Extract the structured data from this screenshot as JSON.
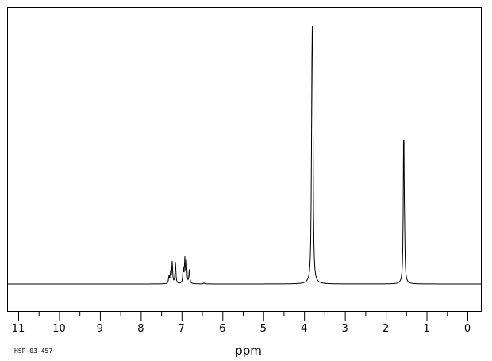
{
  "chart_data": {
    "type": "line",
    "title": "",
    "xlabel": "ppm",
    "ylabel": "",
    "xlim": [
      11,
      0
    ],
    "x_reversed": true,
    "ylim": [
      0,
      1
    ],
    "grid": false,
    "legend": "none",
    "x_ticks": [
      "11",
      "10",
      "9",
      "8",
      "7",
      "6",
      "5",
      "4",
      "3",
      "2",
      "1",
      "0"
    ],
    "spectrum_code": "HSP-03-457",
    "line_color": "#000000",
    "peaks": [
      {
        "ppm": 7.31,
        "height": 0.03
      },
      {
        "ppm": 7.27,
        "height": 0.045
      },
      {
        "ppm": 7.23,
        "height": 0.085
      },
      {
        "ppm": 7.15,
        "height": 0.087
      },
      {
        "ppm": 6.96,
        "height": 0.06
      },
      {
        "ppm": 6.92,
        "height": 0.098
      },
      {
        "ppm": 6.88,
        "height": 0.085
      },
      {
        "ppm": 6.81,
        "height": 0.055
      },
      {
        "ppm": 6.45,
        "height": 0.004
      },
      {
        "ppm": 3.82,
        "height": 0.18
      },
      {
        "ppm": 3.8,
        "height": 1.0
      },
      {
        "ppm": 3.79,
        "height": 0.56
      },
      {
        "ppm": 1.56,
        "height": 0.62
      },
      {
        "ppm": 1.54,
        "height": 0.12
      }
    ]
  }
}
